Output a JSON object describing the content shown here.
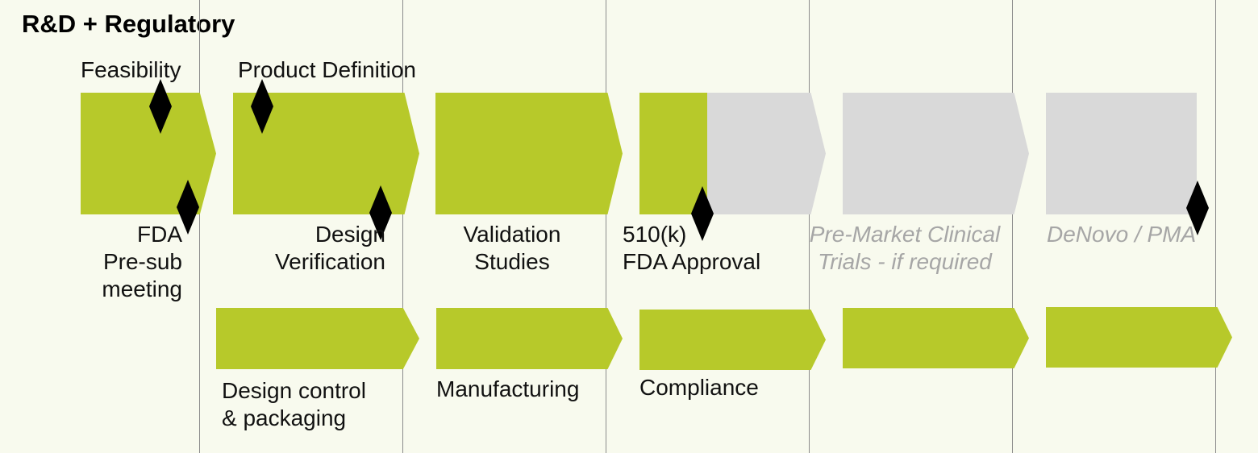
{
  "title": "R&D + Regulatory",
  "labels": {
    "feasibility": "Feasibility",
    "product_definition": "Product Definition",
    "fda_presub": [
      "FDA",
      "Pre-sub",
      "meeting"
    ],
    "design_verification": [
      "Design",
      "Verification"
    ],
    "validation_studies": [
      "Validation",
      "Studies"
    ],
    "fda_approval": [
      "510(k)",
      "FDA Approval"
    ],
    "premarket_trials": [
      "Pre-Market Clinical",
      "Trials - if required"
    ],
    "denovo_pma": "DeNovo / PMA",
    "design_control": [
      "Design control",
      "& packaging"
    ],
    "manufacturing": "Manufacturing",
    "compliance": "Compliance"
  },
  "colors": {
    "background": "#f8faee",
    "green": "#b7c92a",
    "grey": "#d9d9d9",
    "milestone": "#000000",
    "muted_text": "#a6a6a6"
  }
}
